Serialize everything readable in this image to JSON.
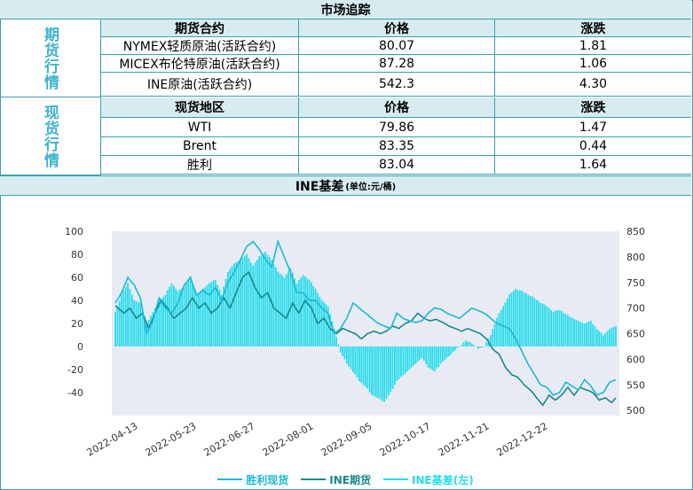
{
  "header": {
    "title": "市场追踪"
  },
  "futures": {
    "side_label": "期货行情",
    "columns": [
      "期货合约",
      "价格",
      "涨跌"
    ],
    "rows": [
      [
        "NYMEX轻质原油(活跃合约)",
        "80.07",
        "1.81"
      ],
      [
        "MICEX布伦特原油(活跃合约)",
        "87.28",
        "1.06"
      ],
      [
        "INE原油(活跃合约)",
        "542.3",
        "4.30"
      ]
    ]
  },
  "spot": {
    "side_label": "现货行情",
    "columns": [
      "现货地区",
      "价格",
      "涨跌"
    ],
    "rows": [
      [
        "WTI",
        "79.86",
        "1.47"
      ],
      [
        "Brent",
        "83.35",
        "0.44"
      ],
      [
        "胜利",
        "83.04",
        "1.64"
      ]
    ]
  },
  "chart_header": {
    "title": "INE基差",
    "unit": "(单位:元/桶)"
  },
  "colors": {
    "border": "#3d9fb0",
    "header_bg": "#d6ecf0",
    "accent": "#3fb3cf",
    "spot": "#19b9d8",
    "futures": "#178a8a",
    "basis": "#24dcec",
    "plot_bg": "#e9ebf4"
  },
  "chart_data": {
    "type": "line",
    "x_tick_labels": [
      "2022-04-13",
      "2022-05-23",
      "2022-06-27",
      "2022-08-01",
      "2022-09-05",
      "2022-10-17",
      "2022-11-21",
      "2022-12-22"
    ],
    "left_axis": {
      "ticks": [
        100,
        80,
        60,
        40,
        20,
        0,
        -20,
        -40
      ],
      "ylim": [
        -60,
        100
      ]
    },
    "right_axis": {
      "ticks": [
        850,
        800,
        750,
        700,
        650,
        600,
        550,
        500
      ],
      "ylim": [
        490,
        850
      ]
    },
    "grid": false,
    "legend_position": "bottom-center",
    "series": [
      {
        "name": "胜利现货",
        "axis": "right",
        "style": "line",
        "color": "#19b9d8"
      },
      {
        "name": "INE期货",
        "axis": "right",
        "style": "line",
        "color": "#178a8a"
      },
      {
        "name": "INE基差(左)",
        "axis": "left",
        "style": "bar",
        "color": "#24dcec"
      }
    ],
    "spot_keypoints": [
      [
        0,
        710
      ],
      [
        3,
        730
      ],
      [
        6,
        760
      ],
      [
        9,
        745
      ],
      [
        12,
        720
      ],
      [
        15,
        650
      ],
      [
        18,
        675
      ],
      [
        21,
        720
      ],
      [
        24,
        700
      ],
      [
        27,
        690
      ],
      [
        30,
        710
      ],
      [
        33,
        745
      ],
      [
        36,
        760
      ],
      [
        39,
        725
      ],
      [
        42,
        735
      ],
      [
        45,
        725
      ],
      [
        48,
        740
      ],
      [
        51,
        715
      ],
      [
        54,
        750
      ],
      [
        57,
        770
      ],
      [
        60,
        795
      ],
      [
        63,
        820
      ],
      [
        66,
        830
      ],
      [
        69,
        815
      ],
      [
        72,
        795
      ],
      [
        75,
        780
      ],
      [
        78,
        830
      ],
      [
        81,
        800
      ],
      [
        84,
        770
      ],
      [
        87,
        730
      ],
      [
        90,
        730
      ],
      [
        93,
        715
      ],
      [
        96,
        715
      ],
      [
        99,
        700
      ],
      [
        102,
        690
      ],
      [
        105,
        650
      ],
      [
        108,
        660
      ],
      [
        111,
        680
      ],
      [
        114,
        710
      ],
      [
        117,
        700
      ],
      [
        120,
        690
      ],
      [
        123,
        680
      ],
      [
        126,
        670
      ],
      [
        129,
        665
      ],
      [
        132,
        660
      ],
      [
        135,
        690
      ],
      [
        138,
        680
      ],
      [
        141,
        675
      ],
      [
        144,
        672
      ],
      [
        147,
        675
      ],
      [
        150,
        690
      ],
      [
        153,
        700
      ],
      [
        156,
        698
      ],
      [
        159,
        690
      ],
      [
        162,
        685
      ],
      [
        165,
        680
      ],
      [
        168,
        690
      ],
      [
        171,
        700
      ],
      [
        174,
        695
      ],
      [
        177,
        690
      ],
      [
        180,
        680
      ],
      [
        183,
        670
      ],
      [
        186,
        665
      ],
      [
        189,
        660
      ],
      [
        192,
        640
      ],
      [
        195,
        615
      ],
      [
        198,
        590
      ],
      [
        201,
        570
      ],
      [
        204,
        550
      ],
      [
        207,
        545
      ],
      [
        210,
        530
      ],
      [
        213,
        535
      ],
      [
        216,
        555
      ],
      [
        219,
        548
      ],
      [
        222,
        540
      ],
      [
        225,
        560
      ],
      [
        228,
        548
      ],
      [
        231,
        530
      ],
      [
        234,
        535
      ],
      [
        237,
        555
      ],
      [
        240,
        560
      ]
    ],
    "futures_keypoints": [
      [
        0,
        705
      ],
      [
        4,
        690
      ],
      [
        7,
        700
      ],
      [
        10,
        680
      ],
      [
        13,
        690
      ],
      [
        16,
        660
      ],
      [
        19,
        690
      ],
      [
        22,
        715
      ],
      [
        25,
        700
      ],
      [
        28,
        680
      ],
      [
        31,
        690
      ],
      [
        34,
        700
      ],
      [
        37,
        720
      ],
      [
        40,
        700
      ],
      [
        43,
        710
      ],
      [
        46,
        690
      ],
      [
        49,
        700
      ],
      [
        52,
        720
      ],
      [
        55,
        700
      ],
      [
        58,
        730
      ],
      [
        61,
        760
      ],
      [
        64,
        770
      ],
      [
        67,
        740
      ],
      [
        70,
        720
      ],
      [
        73,
        730
      ],
      [
        76,
        700
      ],
      [
        79,
        690
      ],
      [
        82,
        680
      ],
      [
        85,
        710
      ],
      [
        88,
        690
      ],
      [
        91,
        715
      ],
      [
        94,
        700
      ],
      [
        97,
        670
      ],
      [
        100,
        680
      ],
      [
        103,
        660
      ],
      [
        106,
        650
      ],
      [
        109,
        660
      ],
      [
        112,
        655
      ],
      [
        115,
        650
      ],
      [
        118,
        640
      ],
      [
        121,
        650
      ],
      [
        124,
        655
      ],
      [
        127,
        650
      ],
      [
        130,
        655
      ],
      [
        133,
        665
      ],
      [
        136,
        660
      ],
      [
        139,
        670
      ],
      [
        142,
        675
      ],
      [
        145,
        690
      ],
      [
        148,
        680
      ],
      [
        151,
        675
      ],
      [
        154,
        678
      ],
      [
        157,
        672
      ],
      [
        160,
        665
      ],
      [
        163,
        660
      ],
      [
        166,
        655
      ],
      [
        169,
        660
      ],
      [
        172,
        655
      ],
      [
        175,
        650
      ],
      [
        178,
        640
      ],
      [
        181,
        620
      ],
      [
        184,
        610
      ],
      [
        187,
        585
      ],
      [
        190,
        570
      ],
      [
        193,
        565
      ],
      [
        196,
        550
      ],
      [
        199,
        540
      ],
      [
        202,
        525
      ],
      [
        205,
        510
      ],
      [
        208,
        530
      ],
      [
        211,
        520
      ],
      [
        214,
        530
      ],
      [
        217,
        545
      ],
      [
        220,
        530
      ],
      [
        223,
        545
      ],
      [
        226,
        540
      ],
      [
        229,
        535
      ],
      [
        232,
        520
      ],
      [
        235,
        525
      ],
      [
        238,
        515
      ],
      [
        240,
        525
      ]
    ],
    "basis_keypoints": [
      [
        0,
        30
      ],
      [
        3,
        45
      ],
      [
        6,
        55
      ],
      [
        9,
        40
      ],
      [
        12,
        38
      ],
      [
        15,
        20
      ],
      [
        18,
        30
      ],
      [
        21,
        40
      ],
      [
        24,
        45
      ],
      [
        27,
        55
      ],
      [
        30,
        48
      ],
      [
        33,
        52
      ],
      [
        36,
        60
      ],
      [
        39,
        45
      ],
      [
        42,
        50
      ],
      [
        45,
        55
      ],
      [
        48,
        58
      ],
      [
        51,
        45
      ],
      [
        54,
        65
      ],
      [
        57,
        72
      ],
      [
        60,
        75
      ],
      [
        63,
        80
      ],
      [
        66,
        70
      ],
      [
        69,
        78
      ],
      [
        72,
        82
      ],
      [
        75,
        75
      ],
      [
        78,
        65
      ],
      [
        81,
        60
      ],
      [
        84,
        68
      ],
      [
        87,
        55
      ],
      [
        90,
        62
      ],
      [
        93,
        58
      ],
      [
        96,
        50
      ],
      [
        99,
        40
      ],
      [
        102,
        35
      ],
      [
        105,
        15
      ],
      [
        108,
        -5
      ],
      [
        111,
        -15
      ],
      [
        114,
        -22
      ],
      [
        117,
        -30
      ],
      [
        120,
        -35
      ],
      [
        123,
        -42
      ],
      [
        126,
        -45
      ],
      [
        129,
        -48
      ],
      [
        132,
        -40
      ],
      [
        135,
        -30
      ],
      [
        138,
        -25
      ],
      [
        141,
        -20
      ],
      [
        144,
        -15
      ],
      [
        147,
        -10
      ],
      [
        150,
        -18
      ],
      [
        153,
        -22
      ],
      [
        156,
        -15
      ],
      [
        159,
        -10
      ],
      [
        162,
        -5
      ],
      [
        165,
        0
      ],
      [
        168,
        5
      ],
      [
        171,
        3
      ],
      [
        174,
        -2
      ],
      [
        177,
        0
      ],
      [
        180,
        10
      ],
      [
        183,
        25
      ],
      [
        186,
        35
      ],
      [
        189,
        45
      ],
      [
        192,
        50
      ],
      [
        195,
        48
      ],
      [
        198,
        45
      ],
      [
        201,
        42
      ],
      [
        204,
        38
      ],
      [
        207,
        35
      ],
      [
        210,
        30
      ],
      [
        213,
        32
      ],
      [
        216,
        28
      ],
      [
        219,
        25
      ],
      [
        222,
        22
      ],
      [
        225,
        20
      ],
      [
        228,
        22
      ],
      [
        231,
        15
      ],
      [
        234,
        10
      ],
      [
        237,
        15
      ],
      [
        240,
        18
      ]
    ]
  },
  "legend": [
    {
      "label": "胜利现货",
      "color": "#19b9d8"
    },
    {
      "label": "INE期货",
      "color": "#178a8a"
    },
    {
      "label": "INE基差(左)",
      "color": "#24dcec"
    }
  ]
}
